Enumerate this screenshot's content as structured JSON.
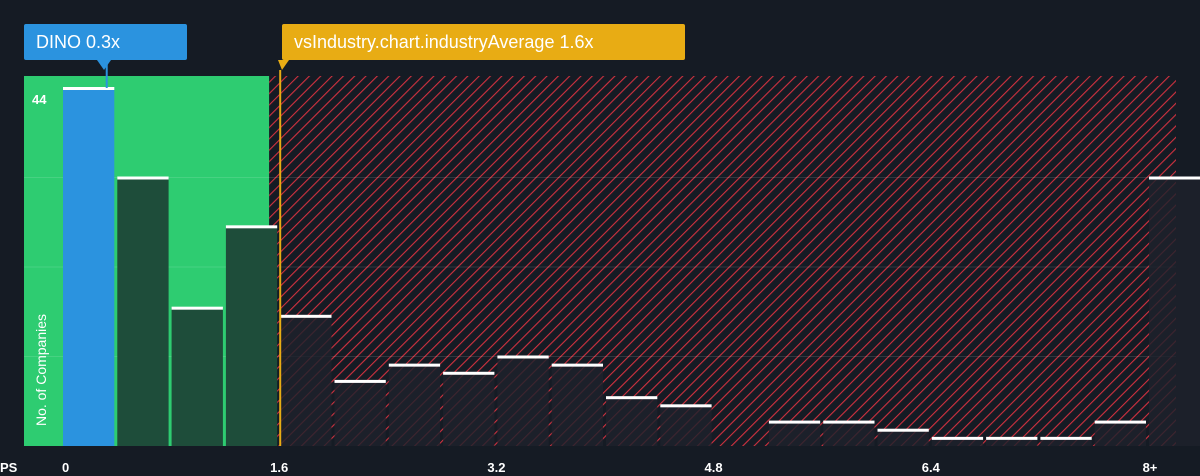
{
  "colors": {
    "background": "#151b24",
    "under_zone": "#2ecc71",
    "company_bar": "#2b93df",
    "under_bar": "#1e4d3a",
    "over_zone_hatch": "#d1313f",
    "over_bar": "#1e222c",
    "industry_line": "#e8ac14",
    "bar_cap": "#ffffff"
  },
  "callouts": {
    "company": "DINO 0.3x",
    "industry": "vsIndustry.chart.industryAverage 1.6x"
  },
  "chart_data": {
    "type": "bar",
    "xlabel": "PS",
    "ylabel": "No. of Companies",
    "x_ticks": [
      "0",
      "1.6",
      "3.2",
      "4.8",
      "6.4",
      "8+"
    ],
    "y_ticks": [
      "44"
    ],
    "xlim": [
      0,
      8.2
    ],
    "ylim": [
      0,
      44
    ],
    "bin_width": 0.4,
    "bins": [
      {
        "x": 0.0,
        "value": 44
      },
      {
        "x": 0.4,
        "value": 33
      },
      {
        "x": 0.8,
        "value": 17
      },
      {
        "x": 1.2,
        "value": 27
      },
      {
        "x": 1.6,
        "value": 16
      },
      {
        "x": 2.0,
        "value": 8
      },
      {
        "x": 2.4,
        "value": 10
      },
      {
        "x": 2.8,
        "value": 9
      },
      {
        "x": 3.2,
        "value": 11
      },
      {
        "x": 3.6,
        "value": 10
      },
      {
        "x": 4.0,
        "value": 6
      },
      {
        "x": 4.4,
        "value": 5
      },
      {
        "x": 4.8,
        "value": 0
      },
      {
        "x": 5.2,
        "value": 3
      },
      {
        "x": 5.6,
        "value": 3
      },
      {
        "x": 6.0,
        "value": 2
      },
      {
        "x": 6.4,
        "value": 1
      },
      {
        "x": 6.8,
        "value": 1
      },
      {
        "x": 7.2,
        "value": 1
      },
      {
        "x": 7.6,
        "value": 3
      },
      {
        "x": 8.0,
        "value": 33
      }
    ],
    "company": {
      "name": "DINO",
      "value": 0.3
    },
    "industry_average": 1.6
  }
}
